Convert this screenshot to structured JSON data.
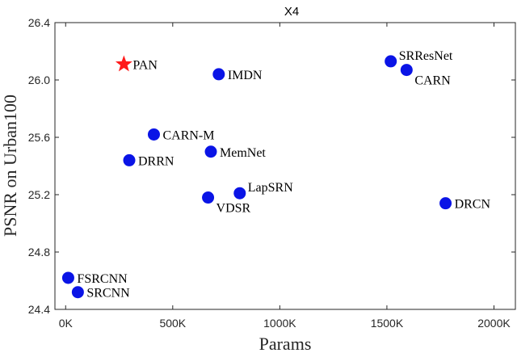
{
  "chart_data": {
    "type": "scatter",
    "title": "X4",
    "xlabel": "Params",
    "ylabel": "PSNR on Urban100",
    "xlim": [
      -50000,
      2100000
    ],
    "ylim": [
      24.4,
      26.4
    ],
    "xticks": [
      0,
      500000,
      1000000,
      1500000,
      2000000
    ],
    "xtick_labels": [
      "0K",
      "500K",
      "1000K",
      "1500K",
      "2000K"
    ],
    "yticks": [
      24.4,
      24.8,
      25.2,
      25.6,
      26.0,
      26.4
    ],
    "ytick_labels": [
      "24.4",
      "24.8",
      "25.2",
      "25.6",
      "26.0",
      "26.4"
    ],
    "grid": false,
    "colors": {
      "points": "#0a14e6",
      "highlight": "#ff1a1a"
    },
    "points": [
      {
        "label": "PAN",
        "x": 272000,
        "y": 26.11,
        "marker": "star",
        "label_pos": "right"
      },
      {
        "label": "IMDN",
        "x": 715000,
        "y": 26.04,
        "marker": "circle",
        "label_pos": "right"
      },
      {
        "label": "SRResNet",
        "x": 1518000,
        "y": 26.13,
        "marker": "circle",
        "label_pos": "upper-right"
      },
      {
        "label": "CARN",
        "x": 1592000,
        "y": 26.07,
        "marker": "circle",
        "label_pos": "lower-right"
      },
      {
        "label": "CARN-M",
        "x": 412000,
        "y": 25.62,
        "marker": "circle",
        "label_pos": "right"
      },
      {
        "label": "MemNet",
        "x": 678000,
        "y": 25.5,
        "marker": "circle",
        "label_pos": "right"
      },
      {
        "label": "DRRN",
        "x": 297000,
        "y": 25.44,
        "marker": "circle",
        "label_pos": "right"
      },
      {
        "label": "LapSRN",
        "x": 813000,
        "y": 25.21,
        "marker": "circle",
        "label_pos": "upper-right"
      },
      {
        "label": "VDSR",
        "x": 665000,
        "y": 25.18,
        "marker": "circle",
        "label_pos": "lower-right"
      },
      {
        "label": "DRCN",
        "x": 1774000,
        "y": 25.14,
        "marker": "circle",
        "label_pos": "right"
      },
      {
        "label": "FSRCNN",
        "x": 12000,
        "y": 24.62,
        "marker": "circle",
        "label_pos": "right"
      },
      {
        "label": "SRCNN",
        "x": 57000,
        "y": 24.52,
        "marker": "circle",
        "label_pos": "right"
      }
    ]
  }
}
